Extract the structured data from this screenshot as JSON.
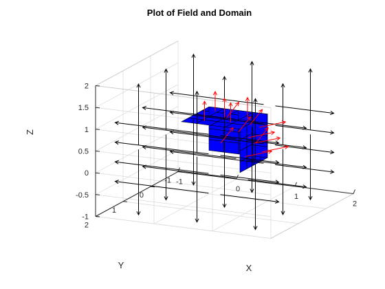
{
  "chart_data": {
    "type": "quiver3d",
    "title": "Plot of Field and Domain",
    "xlabel": "X",
    "ylabel": "Y",
    "zlabel": "Z",
    "xlim": [
      -1,
      2
    ],
    "ylim": [
      -1,
      2
    ],
    "zlim": [
      -1,
      2
    ],
    "xticks": [
      "-1",
      "0",
      "1",
      "2"
    ],
    "yticks": [
      "-1",
      "0",
      "1",
      "2"
    ],
    "zticks": [
      "-1",
      "-0.5",
      "0",
      "0.5",
      "1",
      "1.5",
      "2"
    ],
    "grid": true,
    "box": {
      "name": "domain",
      "x_range": [
        0,
        1
      ],
      "y_range": [
        0,
        1
      ],
      "z_range": [
        0,
        1
      ],
      "divisions": 4,
      "face_color": "#0000ff",
      "edge_color": "#000000"
    },
    "field": {
      "positions": [
        -0.5,
        0.5,
        1.5
      ],
      "vertical_positions": [
        -1,
        0,
        1,
        2
      ],
      "external_color": "#000000",
      "surface_color": "#ff0000"
    }
  }
}
